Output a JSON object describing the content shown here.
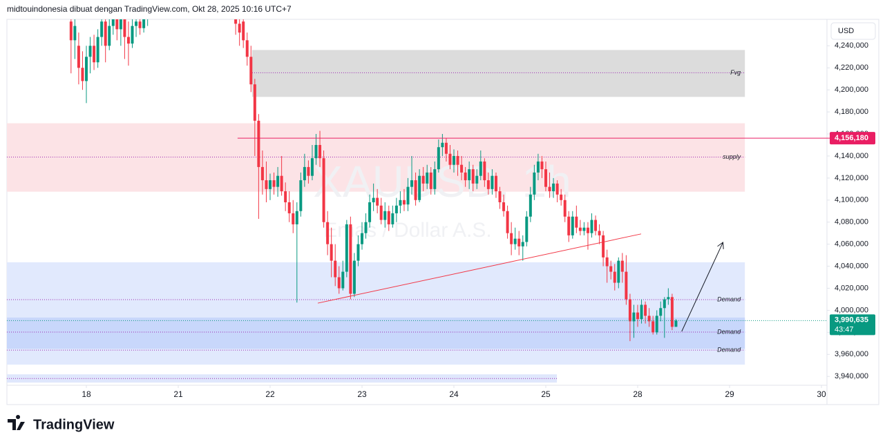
{
  "header": "midtouindonesia dibuat dengan TradingView.com, Okt 28, 2025 10:16 UTC+7",
  "currency_button": "USD",
  "logo": "TradingView",
  "chart_data": {
    "type": "candlestick",
    "watermark": "XAUUSD, 1h",
    "watermark_subtitle": "Emas / Dollar A.S.",
    "up_color": "#089981",
    "down_color": "#f23645",
    "grid": false,
    "xlim": [
      -20.75,
      193.44
    ],
    "ylim": [
      3932000,
      4264000
    ],
    "xticks": [
      {
        "value": 0,
        "label": "18"
      },
      {
        "value": 24,
        "label": "21"
      },
      {
        "value": 48,
        "label": "22"
      },
      {
        "value": 72,
        "label": "23"
      },
      {
        "value": 96,
        "label": "24"
      },
      {
        "value": 120,
        "label": "25"
      },
      {
        "value": 144,
        "label": "28"
      },
      {
        "value": 168,
        "label": "29"
      },
      {
        "value": 192,
        "label": "30"
      }
    ],
    "yticks": [
      {
        "value": 3940000,
        "label": "3,940,000"
      },
      {
        "value": 3960000,
        "label": "3,960,000"
      },
      {
        "value": 3980000,
        "label": "3,980,000"
      },
      {
        "value": 4000000,
        "label": "4,000,000"
      },
      {
        "value": 4020000,
        "label": "4,020,000"
      },
      {
        "value": 4040000,
        "label": "4,040,000"
      },
      {
        "value": 4060000,
        "label": "4,060,000"
      },
      {
        "value": 4080000,
        "label": "4,080,000"
      },
      {
        "value": 4100000,
        "label": "4,100,000"
      },
      {
        "value": 4120000,
        "label": "4,120,000"
      },
      {
        "value": 4140000,
        "label": "4,140,000"
      },
      {
        "value": 4160000,
        "label": "4,160,000"
      },
      {
        "value": 4180000,
        "label": "4,180,000"
      },
      {
        "value": 4200000,
        "label": "4,200,000"
      },
      {
        "value": 4220000,
        "label": "4,220,000"
      },
      {
        "value": 4240000,
        "label": "4,240,000"
      }
    ],
    "zones": [
      {
        "x": [
          43.3,
          172
        ],
        "top": 4236200,
        "bottom": 4193600,
        "color": "#dcdcdc"
      },
      {
        "x": [
          -20.75,
          172
        ],
        "top": 4169700,
        "bottom": 4107600,
        "color": "#fce3e6"
      },
      {
        "x": [
          -20.75,
          172
        ],
        "top": 4043600,
        "bottom": 3950700,
        "color": "#e1e9fd"
      },
      {
        "x": [
          -20.75,
          172
        ],
        "top": 3993400,
        "bottom": 3965100,
        "color": "#c8d7fb"
      },
      {
        "x": [
          -20.75,
          122.9
        ],
        "top": 3941900,
        "bottom": 3934400,
        "color": "#dfe7fc"
      }
    ],
    "levels": [
      {
        "label": "Fvg",
        "value": 4215500,
        "x": [
          43.3,
          172
        ],
        "color": "#9c27b0"
      },
      {
        "label": "supply",
        "value": 4139000,
        "x": [
          -20.75,
          172
        ],
        "color": "#9c27b0"
      },
      {
        "label": "Demand",
        "value": 4009700,
        "x": [
          -20.75,
          172
        ],
        "color": "#9c27b0"
      },
      {
        "label": "Demand",
        "value": 3980200,
        "x": [
          -20.75,
          172
        ],
        "color": "#9c27b0"
      },
      {
        "label": "Demand",
        "value": 3963900,
        "x": [
          -20.75,
          172
        ],
        "color": "#9c27b0"
      },
      {
        "value": 3938100,
        "x": [
          -20.75,
          122.9
        ],
        "color": "#9c27b0"
      }
    ],
    "price_line": {
      "value": 4156180,
      "label": "4,156,180",
      "x_start": 39.5,
      "color": "#e91e63"
    },
    "trendline": {
      "x": [
        60.45,
        144.9
      ],
      "y": [
        4006500,
        4069300
      ],
      "color": "#f23645"
    },
    "arrow": {
      "x": [
        155.5,
        166.2
      ],
      "y": [
        3980800,
        4061100
      ],
      "color": "#131722"
    },
    "current_price": {
      "value": 3990635,
      "label": "3,990,635",
      "countdown": "43:47",
      "color": "#089981"
    },
    "candles": [
      [
        -4,
        4262000,
        4268000,
        4215000,
        4245000
      ],
      [
        -3,
        4245000,
        4266000,
        4228000,
        4258000
      ],
      [
        -2,
        4240000,
        4252000,
        4205000,
        4220000
      ],
      [
        -1,
        4220000,
        4235000,
        4200000,
        4208000
      ],
      [
        0,
        4208000,
        4240000,
        4188000,
        4230000
      ],
      [
        1,
        4230000,
        4248000,
        4215000,
        4240000
      ],
      [
        2,
        4240000,
        4250000,
        4218000,
        4225000
      ],
      [
        3,
        4225000,
        4255000,
        4220000,
        4248000
      ],
      [
        4,
        4248000,
        4270000,
        4240000,
        4262000
      ],
      [
        5,
        4262000,
        4266000,
        4225000,
        4240000
      ],
      [
        6,
        4240000,
        4266000,
        4236000,
        4258000
      ],
      [
        7,
        4258000,
        4272000,
        4250000,
        4265000
      ],
      [
        8,
        4265000,
        4270000,
        4245000,
        4255000
      ],
      [
        9,
        4255000,
        4274000,
        4240000,
        4268000
      ],
      [
        10,
        4268000,
        4272000,
        4228000,
        4248000
      ],
      [
        11,
        4248000,
        4262000,
        4222000,
        4242000
      ],
      [
        12,
        4242000,
        4266000,
        4238000,
        4258000
      ],
      [
        13,
        4258000,
        4270000,
        4248000,
        4262000
      ],
      [
        14,
        4262000,
        4270000,
        4250000,
        4256000
      ],
      [
        15,
        4256000,
        4272000,
        4252000,
        4266000
      ],
      [
        16,
        4266000,
        4275000,
        4258000,
        4268000
      ],
      [
        39,
        4268000,
        4272000,
        4250000,
        4260000
      ],
      [
        40,
        4260000,
        4265000,
        4240000,
        4252000
      ],
      [
        41,
        4262000,
        4268000,
        4238000,
        4245000
      ],
      [
        42,
        4245000,
        4252000,
        4222000,
        4230000
      ],
      [
        43,
        4230000,
        4240000,
        4198000,
        4205000
      ],
      [
        44,
        4205000,
        4210000,
        4140000,
        4172000
      ],
      [
        45,
        4172000,
        4178000,
        4083000,
        4130000
      ],
      [
        46,
        4130000,
        4145000,
        4105000,
        4118000
      ],
      [
        47,
        4118000,
        4135000,
        4098000,
        4110000
      ],
      [
        48,
        4110000,
        4124000,
        4100000,
        4118000
      ],
      [
        49,
        4118000,
        4125000,
        4105000,
        4112000
      ],
      [
        50,
        4112000,
        4130000,
        4103000,
        4122000
      ],
      [
        51,
        4122000,
        4140000,
        4104000,
        4108000
      ],
      [
        52,
        4108000,
        4116000,
        4090000,
        4098000
      ],
      [
        53,
        4098000,
        4108000,
        4080000,
        4088000
      ],
      [
        54,
        4088000,
        4100000,
        4070000,
        4078000
      ],
      [
        55,
        4078000,
        4098000,
        4007000,
        4090000
      ],
      [
        56,
        4090000,
        4125000,
        4085000,
        4118000
      ],
      [
        57,
        4118000,
        4142000,
        4112000,
        4130000
      ],
      [
        58,
        4130000,
        4136000,
        4115000,
        4122000
      ],
      [
        59,
        4122000,
        4150000,
        4118000,
        4138000
      ],
      [
        60,
        4138000,
        4160000,
        4132000,
        4150000
      ],
      [
        61,
        4150000,
        4162800,
        4130000,
        4138000
      ],
      [
        62,
        4138000,
        4145000,
        4075000,
        4080000
      ],
      [
        63,
        4080000,
        4090000,
        4050000,
        4060000
      ],
      [
        64,
        4060000,
        4075000,
        4030000,
        4045000
      ],
      [
        65,
        4045000,
        4060000,
        4022000,
        4030000
      ],
      [
        66,
        4030000,
        4040000,
        4015000,
        4020000
      ],
      [
        67,
        4020000,
        4045000,
        4018000,
        4035000
      ],
      [
        68,
        4035000,
        4082000,
        4030000,
        4078000
      ],
      [
        69,
        4078000,
        4085000,
        4010000,
        4015000
      ],
      [
        70,
        4015000,
        4052000,
        4012000,
        4045000
      ],
      [
        71,
        4045000,
        4068000,
        4040000,
        4060000
      ],
      [
        72,
        4060000,
        4080000,
        4055000,
        4070000
      ],
      [
        73,
        4070000,
        4088000,
        4065000,
        4080000
      ],
      [
        74,
        4080000,
        4105000,
        4075000,
        4098000
      ],
      [
        75,
        4098000,
        4115000,
        4090000,
        4102000
      ],
      [
        76,
        4102000,
        4110000,
        4088000,
        4095000
      ],
      [
        77,
        4095000,
        4102000,
        4078000,
        4082000
      ],
      [
        78,
        4082000,
        4098000,
        4075000,
        4090000
      ],
      [
        79,
        4090000,
        4095000,
        4072000,
        4078000
      ],
      [
        80,
        4078000,
        4095000,
        4075000,
        4088000
      ],
      [
        81,
        4088000,
        4102000,
        4080000,
        4095000
      ],
      [
        82,
        4095000,
        4108000,
        4088000,
        4100000
      ],
      [
        83,
        4100000,
        4110000,
        4090000,
        4096000
      ],
      [
        84,
        4096000,
        4120000,
        4090000,
        4112000
      ],
      [
        85,
        4112000,
        4140000,
        4105000,
        4118000
      ],
      [
        86,
        4118000,
        4125000,
        4095000,
        4100000
      ],
      [
        87,
        4100000,
        4128000,
        4098000,
        4122000
      ],
      [
        88,
        4122000,
        4130000,
        4108000,
        4115000
      ],
      [
        89,
        4115000,
        4132000,
        4110000,
        4125000
      ],
      [
        90,
        4125000,
        4130000,
        4105000,
        4110000
      ],
      [
        91,
        4110000,
        4135000,
        4105000,
        4128000
      ],
      [
        92,
        4128000,
        4155000,
        4125000,
        4148000
      ],
      [
        93,
        4148000,
        4160000,
        4140000,
        4152000
      ],
      [
        94,
        4152000,
        4156000,
        4135000,
        4142000
      ],
      [
        95,
        4142000,
        4150000,
        4128000,
        4132000
      ],
      [
        96,
        4132000,
        4146000,
        4125000,
        4140000
      ],
      [
        97,
        4140000,
        4145000,
        4122000,
        4132000
      ],
      [
        98,
        4132000,
        4140000,
        4118000,
        4125000
      ],
      [
        99,
        4125000,
        4130000,
        4112000,
        4118000
      ],
      [
        100,
        4118000,
        4135000,
        4110000,
        4128000
      ],
      [
        101,
        4128000,
        4132000,
        4108000,
        4115000
      ],
      [
        102,
        4115000,
        4128000,
        4110000,
        4122000
      ],
      [
        103,
        4122000,
        4145000,
        4118000,
        4135000
      ],
      [
        104,
        4135000,
        4138000,
        4112000,
        4118000
      ],
      [
        105,
        4118000,
        4125000,
        4105000,
        4110000
      ],
      [
        106,
        4110000,
        4128000,
        4105000,
        4122000
      ],
      [
        107,
        4122000,
        4125000,
        4102000,
        4108000
      ],
      [
        108,
        4108000,
        4112000,
        4092000,
        4098000
      ],
      [
        109,
        4098000,
        4105000,
        4085000,
        4090000
      ],
      [
        110,
        4090000,
        4095000,
        4065000,
        4070000
      ],
      [
        111,
        4070000,
        4080000,
        4050000,
        4060000
      ],
      [
        112,
        4060000,
        4075000,
        4055000,
        4065000
      ],
      [
        113,
        4065000,
        4072000,
        4050000,
        4058000
      ],
      [
        114,
        4058000,
        4068000,
        4045000,
        4062000
      ],
      [
        115,
        4062000,
        4090000,
        4058000,
        4085000
      ],
      [
        116,
        4085000,
        4112000,
        4080000,
        4105000
      ],
      [
        117,
        4105000,
        4132000,
        4100000,
        4125000
      ],
      [
        118,
        4125000,
        4142000,
        4118000,
        4135000
      ],
      [
        119,
        4135000,
        4140000,
        4120000,
        4128000
      ],
      [
        120,
        4128000,
        4135000,
        4108000,
        4112000
      ],
      [
        121,
        4112000,
        4125000,
        4102000,
        4108000
      ],
      [
        122,
        4108000,
        4120000,
        4102000,
        4115000
      ],
      [
        123,
        4115000,
        4118000,
        4098000,
        4105000
      ],
      [
        124,
        4105000,
        4110000,
        4095000,
        4100000
      ],
      [
        125,
        4100000,
        4105000,
        4080000,
        4085000
      ],
      [
        126,
        4085000,
        4090000,
        4062000,
        4068000
      ],
      [
        127,
        4068000,
        4090000,
        4065000,
        4085000
      ],
      [
        128,
        4085000,
        4095000,
        4070000,
        4075000
      ],
      [
        129,
        4075000,
        4082000,
        4068000,
        4072000
      ],
      [
        130,
        4072000,
        4080000,
        4068000,
        4075000
      ],
      [
        131,
        4075000,
        4080000,
        4055000,
        4070000
      ],
      [
        132,
        4070000,
        4088000,
        4066000,
        4082000
      ],
      [
        133,
        4082000,
        4086000,
        4068000,
        4072000
      ],
      [
        134,
        4072000,
        4078000,
        4060000,
        4068000
      ],
      [
        135,
        4068000,
        4072000,
        4040000,
        4048000
      ],
      [
        136,
        4048000,
        4055000,
        4025000,
        4040000
      ],
      [
        137,
        4040000,
        4045000,
        4028000,
        4035000
      ],
      [
        138,
        4035000,
        4042000,
        4018000,
        4025000
      ],
      [
        139,
        4025000,
        4048000,
        4020000,
        4045000
      ],
      [
        140,
        4045000,
        4052000,
        4025000,
        4035000
      ],
      [
        141,
        4035000,
        4050000,
        4005000,
        4010000
      ],
      [
        142,
        4010000,
        4015000,
        3972000,
        3990000
      ],
      [
        143,
        3990000,
        4005000,
        3975000,
        3998000
      ],
      [
        144,
        3998000,
        4005000,
        3985000,
        3992000
      ],
      [
        145,
        3992000,
        4010000,
        3988000,
        4005000
      ],
      [
        146,
        4005000,
        4008000,
        3988000,
        3995000
      ],
      [
        147,
        3995000,
        4002000,
        3985000,
        3990000
      ],
      [
        148,
        3990000,
        3995000,
        3978000,
        3980000
      ],
      [
        149,
        3980000,
        4000000,
        3978000,
        3995000
      ],
      [
        150,
        3995000,
        4008000,
        3990000,
        4002000
      ],
      [
        151,
        4002000,
        4012000,
        3975000,
        4010000
      ],
      [
        152,
        4010000,
        4020000,
        4005000,
        4012000
      ],
      [
        153,
        4012000,
        4015000,
        3982000,
        3985000
      ],
      [
        154,
        3985000,
        3992000,
        3985000,
        3990635
      ]
    ]
  }
}
